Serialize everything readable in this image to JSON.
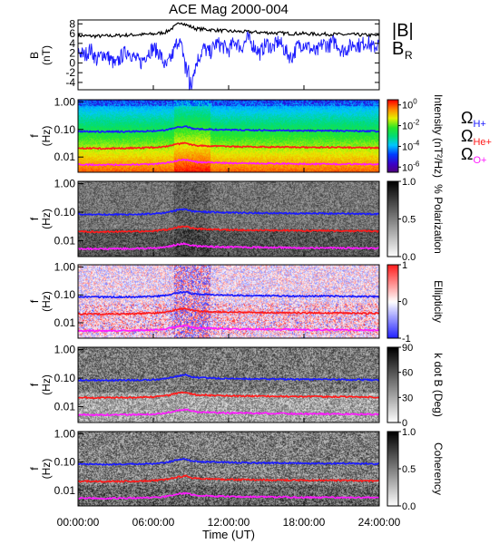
{
  "chart_data": {
    "type": "line+heatmap",
    "title": "ACE Mag 2000-004",
    "xlabel": "Time (UT)",
    "x_ticks": [
      "00:00:00",
      "06:00:00",
      "12:00:00",
      "18:00:00",
      "24:00:00"
    ],
    "xlim_hours": [
      0,
      24
    ],
    "panel_b": {
      "ylabel_line1": "B",
      "ylabel_line2": "(nT)",
      "y_ticks": [
        "8",
        "6",
        "4",
        "2",
        "0",
        "-2",
        "-4"
      ],
      "ylim": [
        -5.5,
        8.8
      ],
      "legend": [
        {
          "text": "|B|",
          "sub": "",
          "color": "#000000"
        },
        {
          "text": "B",
          "sub": "R",
          "color": "#1a1aff"
        }
      ],
      "series": [
        {
          "name": "|B|",
          "color": "#000000",
          "x": [
            0,
            1,
            2,
            3,
            4,
            5,
            6,
            7,
            7.8,
            8.2,
            8.6,
            9,
            9.4,
            10,
            11,
            12,
            13,
            14,
            15,
            16,
            17,
            18,
            19,
            20,
            21,
            22,
            23,
            24
          ],
          "y": [
            5.6,
            5.5,
            5.5,
            5.6,
            5.7,
            5.8,
            5.9,
            6.3,
            7.6,
            8.4,
            7.8,
            7.4,
            7.0,
            6.9,
            6.7,
            6.5,
            6.4,
            6.3,
            6.2,
            6.1,
            6.0,
            6.0,
            5.9,
            5.9,
            5.8,
            5.8,
            5.7,
            5.6
          ]
        },
        {
          "name": "B_R",
          "color": "#1a1aff",
          "x": [
            0,
            0.5,
            1,
            1.5,
            2,
            2.5,
            3,
            3.5,
            4,
            4.5,
            5,
            5.5,
            6,
            6.5,
            7,
            7.5,
            8,
            8.5,
            9,
            9.5,
            10,
            10.5,
            11,
            11.5,
            12,
            12.5,
            13,
            13.5,
            14,
            14.5,
            15,
            15.5,
            16,
            16.5,
            17,
            17.5,
            18,
            18.5,
            19,
            19.5,
            20,
            20.5,
            21,
            21.5,
            22,
            22.5,
            23,
            23.5,
            24
          ],
          "y": [
            2.5,
            1.5,
            2.8,
            0.5,
            2.0,
            1.0,
            -0.5,
            1.5,
            2.5,
            1.0,
            0.0,
            2.0,
            3.0,
            2.0,
            -1.0,
            1.5,
            5.0,
            1.0,
            -3.5,
            0.5,
            3.0,
            2.0,
            4.0,
            3.5,
            2.5,
            4.5,
            3.0,
            5.0,
            3.5,
            2.0,
            4.0,
            3.0,
            4.5,
            2.5,
            1.0,
            3.5,
            4.0,
            3.0,
            2.0,
            4.0,
            3.5,
            4.5,
            2.5,
            3.0,
            4.0,
            3.5,
            4.5,
            3.0,
            4.0
          ]
        }
      ]
    },
    "freq_axis": {
      "ylabel_line1": "f",
      "ylabel_line2": "(Hz)",
      "y_ticks": [
        "1.00",
        "0.10",
        "0.01"
      ],
      "ylim_hz": [
        0.0028,
        1.2
      ],
      "scale": "log"
    },
    "gyro_lines": [
      {
        "name": "ΩH+",
        "color": "#1a1aff",
        "x": [
          0,
          2,
          4,
          6,
          7,
          8,
          8.6,
          9,
          9.5,
          10,
          12,
          14,
          16,
          18,
          20,
          22,
          24
        ],
        "y": [
          0.085,
          0.083,
          0.084,
          0.088,
          0.095,
          0.12,
          0.13,
          0.11,
          0.105,
          0.102,
          0.097,
          0.094,
          0.092,
          0.09,
          0.09,
          0.088,
          0.086
        ]
      },
      {
        "name": "ΩHe+",
        "color": "#ff1a1a",
        "x": [
          0,
          2,
          4,
          6,
          7,
          8,
          8.6,
          9,
          9.5,
          10,
          12,
          14,
          16,
          18,
          20,
          22,
          24
        ],
        "y": [
          0.021,
          0.0205,
          0.021,
          0.022,
          0.024,
          0.03,
          0.032,
          0.028,
          0.026,
          0.0255,
          0.024,
          0.0235,
          0.023,
          0.0225,
          0.0225,
          0.022,
          0.0215
        ]
      },
      {
        "name": "ΩO+",
        "color": "#ff1aff",
        "x": [
          0,
          2,
          4,
          6,
          7,
          8,
          8.6,
          9,
          9.5,
          10,
          12,
          14,
          16,
          18,
          20,
          22,
          24
        ],
        "y": [
          0.0053,
          0.0052,
          0.0053,
          0.0055,
          0.006,
          0.0075,
          0.008,
          0.007,
          0.0065,
          0.0064,
          0.006,
          0.0059,
          0.0058,
          0.0056,
          0.0056,
          0.0055,
          0.0054
        ]
      }
    ],
    "gyro_legend": [
      {
        "symbol": "Ω",
        "sub": "H+",
        "color": "#1a1aff"
      },
      {
        "symbol": "Ω",
        "sub": "He+",
        "color": "#ff1a1a"
      },
      {
        "symbol": "Ω",
        "sub": "O+",
        "color": "#ff1aff"
      }
    ],
    "spectrogram_panels": [
      {
        "name": "intensity",
        "colormap": "rainbow",
        "colorbar_label": "Intensity (nT²/Hz)",
        "colorbar_ticks": [
          {
            "base": "10",
            "exp": "0"
          },
          {
            "base": "10",
            "exp": "-2"
          },
          {
            "base": "10",
            "exp": "-4"
          },
          {
            "base": "10",
            "exp": "-6"
          }
        ],
        "range": [
          -6.5,
          0.5
        ],
        "scale": "log10"
      },
      {
        "name": "polarization",
        "colormap": "gray",
        "colorbar_label": "% Polarization",
        "colorbar_ticks": [
          {
            "base": "1.0"
          },
          {
            "base": "0.5"
          },
          {
            "base": "0.0"
          }
        ],
        "range": [
          0,
          1
        ]
      },
      {
        "name": "ellipticity",
        "colormap": "blue-white-red",
        "colorbar_label": "Ellipticity",
        "colorbar_ticks": [
          {
            "base": "1"
          },
          {
            "base": "0"
          },
          {
            "base": "-1"
          }
        ],
        "range": [
          -1,
          1
        ]
      },
      {
        "name": "kdotb",
        "colormap": "gray",
        "colorbar_label": "k dot B (Deg)",
        "colorbar_ticks": [
          {
            "base": "90"
          },
          {
            "base": "60"
          },
          {
            "base": "30"
          },
          {
            "base": "0"
          }
        ],
        "range": [
          0,
          90
        ]
      },
      {
        "name": "coherency",
        "colormap": "gray",
        "colorbar_label": "Coherency",
        "colorbar_ticks": [
          {
            "base": "1.0"
          },
          {
            "base": "0.5"
          },
          {
            "base": "0.0"
          }
        ],
        "range": [
          0,
          1
        ]
      }
    ]
  }
}
